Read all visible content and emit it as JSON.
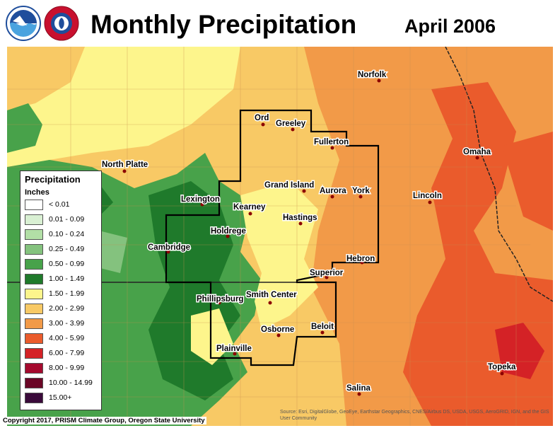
{
  "header": {
    "title": "Monthly Precipitation",
    "subtitle": "April 2006",
    "logos": [
      "noaa-logo",
      "nws-logo"
    ]
  },
  "legend": {
    "title": "Precipitation",
    "unit": "Inches",
    "items": [
      {
        "label": "< 0.01",
        "color": "#ffffff"
      },
      {
        "label": "0.01 - 0.09",
        "color": "#d9f0d3"
      },
      {
        "label": "0.10 - 0.24",
        "color": "#b2dfa6"
      },
      {
        "label": "0.25 - 0.49",
        "color": "#84c27e"
      },
      {
        "label": "0.50 - 0.99",
        "color": "#48a24a"
      },
      {
        "label": "1.00 - 1.49",
        "color": "#1f7a2b"
      },
      {
        "label": "1.50 - 1.99",
        "color": "#fdf58c"
      },
      {
        "label": "2.00 - 2.99",
        "color": "#f8c965"
      },
      {
        "label": "3.00 - 3.99",
        "color": "#f29a48"
      },
      {
        "label": "4.00 - 5.99",
        "color": "#ea5b2c"
      },
      {
        "label": "6.00 - 7.99",
        "color": "#d42226"
      },
      {
        "label": "8.00 - 9.99",
        "color": "#a50a2e"
      },
      {
        "label": "10.00 - 14.99",
        "color": "#6b0626"
      },
      {
        "label": "15.00+",
        "color": "#3a0a3a"
      }
    ]
  },
  "cities": [
    {
      "name": "Norfolk"
    },
    {
      "name": "Ord"
    },
    {
      "name": "Greeley"
    },
    {
      "name": "Fullerton"
    },
    {
      "name": "Omaha"
    },
    {
      "name": "North Platte"
    },
    {
      "name": "Grand Island"
    },
    {
      "name": "Aurora"
    },
    {
      "name": "York"
    },
    {
      "name": "Lincoln"
    },
    {
      "name": "Lexington"
    },
    {
      "name": "Kearney"
    },
    {
      "name": "Hastings"
    },
    {
      "name": "Holdrege"
    },
    {
      "name": "Cambridge"
    },
    {
      "name": "Hebron"
    },
    {
      "name": "Superior"
    },
    {
      "name": "Phillipsburg"
    },
    {
      "name": "Smith Center"
    },
    {
      "name": "Beloit"
    },
    {
      "name": "Osborne"
    },
    {
      "name": "Plainville"
    },
    {
      "name": "Topeka"
    },
    {
      "name": "Salina"
    }
  ],
  "footer": {
    "copyright": "Copyright 2017, PRISM Climate Group, Oregon State University",
    "credit": "Source: Esri, DigitalGlobe, GeoEye, Earthstar Geographics, CNES/Airbus DS, USDA, USGS, AeroGRID, IGN, and the GIS User Community"
  }
}
